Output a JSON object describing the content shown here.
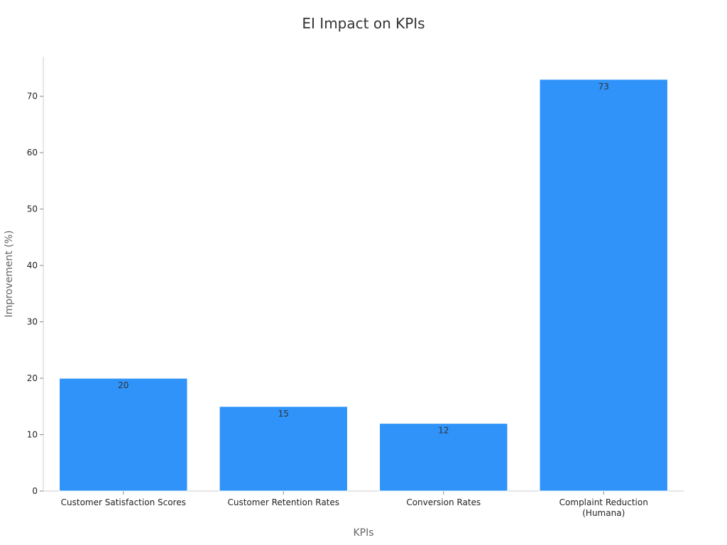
{
  "chart_data": {
    "type": "bar",
    "title": "EI Impact on KPIs",
    "xlabel": "KPIs",
    "ylabel": "Improvement (%)",
    "categories": [
      [
        "Customer Satisfaction Scores"
      ],
      [
        "Customer Retention Rates"
      ],
      [
        "Conversion Rates"
      ],
      [
        "Complaint Reduction",
        "(Humana)"
      ]
    ],
    "values": [
      20,
      15,
      12,
      73
    ],
    "ylim": [
      0,
      77
    ],
    "yticks": [
      0,
      10,
      20,
      30,
      40,
      50,
      60,
      70
    ],
    "grid": false,
    "legend": "none",
    "bar_color": "#2f93fa",
    "bar_stroke": "#ffffff"
  }
}
